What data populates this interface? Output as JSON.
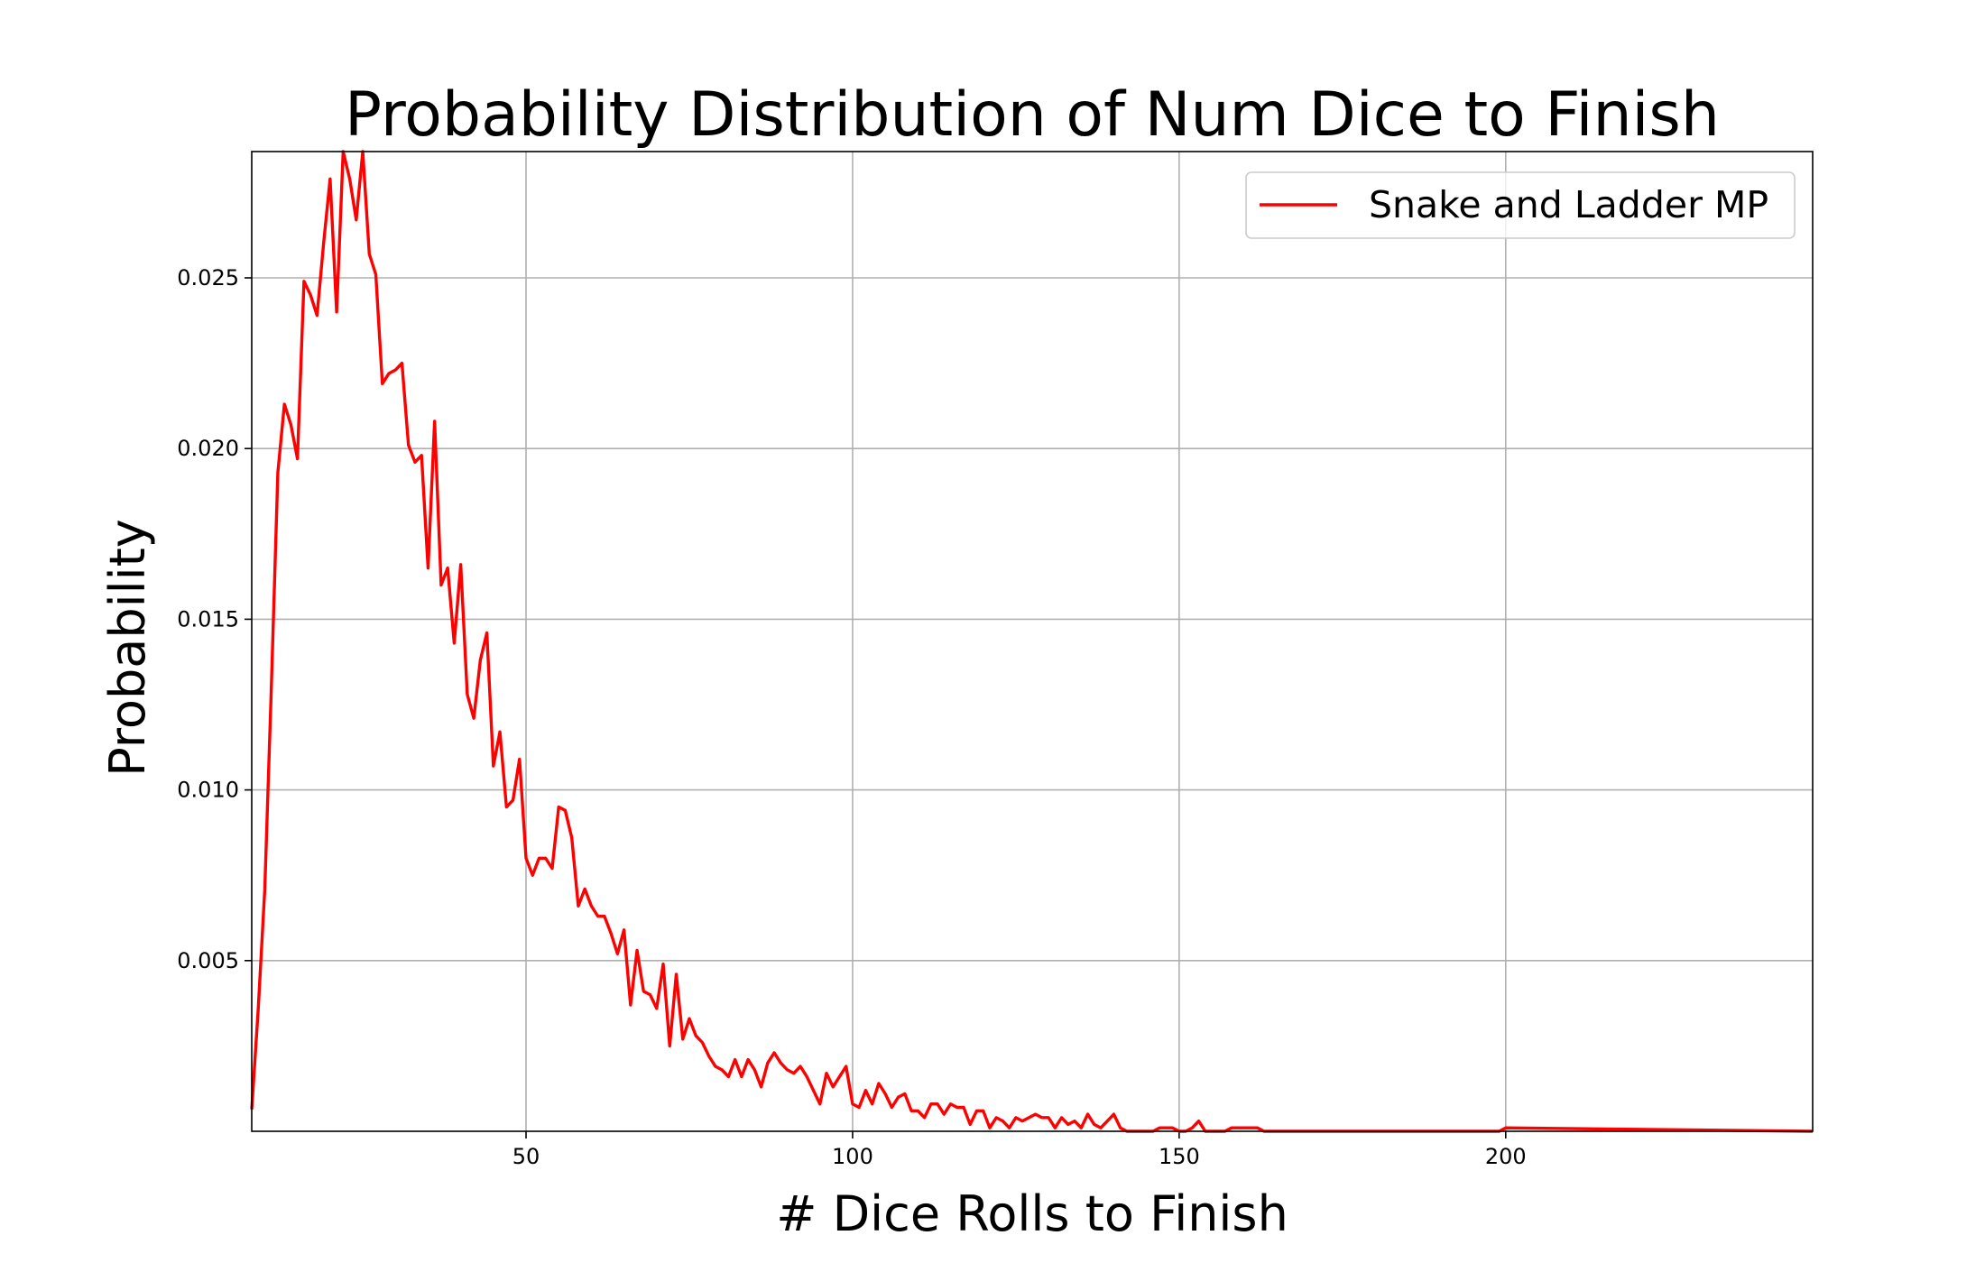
{
  "chart_data": {
    "type": "line",
    "title": "Probability Distribution of Num Dice to Finish",
    "x_label": "# Dice Rolls to Finish",
    "y_label": "Probability",
    "x": [
      8,
      9,
      10,
      11,
      12,
      13,
      14,
      15,
      16,
      17,
      18,
      19,
      20,
      21,
      22,
      23,
      24,
      25,
      26,
      27,
      28,
      29,
      30,
      31,
      32,
      33,
      34,
      35,
      36,
      37,
      38,
      39,
      40,
      41,
      42,
      43,
      44,
      45,
      46,
      47,
      48,
      49,
      50,
      51,
      52,
      53,
      54,
      55,
      56,
      57,
      58,
      59,
      60,
      61,
      62,
      63,
      64,
      65,
      66,
      67,
      68,
      69,
      70,
      71,
      72,
      73,
      74,
      75,
      76,
      77,
      78,
      79,
      80,
      81,
      82,
      83,
      84,
      85,
      86,
      87,
      88,
      89,
      90,
      91,
      92,
      93,
      94,
      95,
      96,
      97,
      98,
      99,
      100,
      101,
      102,
      103,
      104,
      105,
      106,
      107,
      108,
      109,
      110,
      111,
      112,
      113,
      114,
      115,
      116,
      117,
      118,
      119,
      120,
      121,
      122,
      123,
      124,
      125,
      126,
      127,
      128,
      129,
      130,
      131,
      132,
      133,
      134,
      135,
      136,
      137,
      138,
      139,
      140,
      141,
      142,
      143,
      144,
      145,
      146,
      147,
      148,
      149,
      150,
      151,
      152,
      153,
      154,
      155,
      156,
      157,
      158,
      159,
      160,
      161,
      162,
      163,
      199,
      200,
      247
    ],
    "series": [
      {
        "name": "Snake and Ladder MP",
        "color": "#ff0000",
        "values": [
          0.00064,
          0.0036,
          0.0071,
          0.013,
          0.0193,
          0.0213,
          0.0207,
          0.0197,
          0.0249,
          0.0245,
          0.0239,
          0.026,
          0.0279,
          0.024,
          0.0287,
          0.0279,
          0.0267,
          0.0287,
          0.0257,
          0.0251,
          0.0219,
          0.0222,
          0.0223,
          0.0225,
          0.0201,
          0.0196,
          0.0198,
          0.0165,
          0.0208,
          0.016,
          0.0165,
          0.0143,
          0.0166,
          0.0128,
          0.0121,
          0.0138,
          0.0146,
          0.0107,
          0.0117,
          0.0095,
          0.0097,
          0.0109,
          0.008,
          0.0075,
          0.008,
          0.008,
          0.0077,
          0.0095,
          0.0094,
          0.0086,
          0.0066,
          0.0071,
          0.0066,
          0.0063,
          0.0063,
          0.0058,
          0.0052,
          0.0059,
          0.0037,
          0.0053,
          0.0041,
          0.004,
          0.0036,
          0.0049,
          0.0025,
          0.0046,
          0.0027,
          0.0033,
          0.0028,
          0.0026,
          0.0022,
          0.0019,
          0.0018,
          0.0016,
          0.0021,
          0.0016,
          0.0021,
          0.0018,
          0.0013,
          0.002,
          0.0023,
          0.002,
          0.0018,
          0.0017,
          0.0019,
          0.0016,
          0.0012,
          0.0008,
          0.0017,
          0.0013,
          0.0016,
          0.0019,
          0.0008,
          0.0007,
          0.0012,
          0.0008,
          0.0014,
          0.0011,
          0.0007,
          0.001,
          0.0011,
          0.0006,
          0.0006,
          0.0004,
          0.0008,
          0.0008,
          0.0005,
          0.0008,
          0.0007,
          0.0007,
          0.0002,
          0.0006,
          0.0006,
          0.0001,
          0.0004,
          0.0003,
          0.0001,
          0.0004,
          0.0003,
          0.0004,
          0.0005,
          0.0004,
          0.0004,
          0.0001,
          0.0004,
          0.0002,
          0.0003,
          0.0001,
          0.0005,
          0.0002,
          0.0001,
          0.0003,
          0.0005,
          0.0001,
          0,
          0,
          0,
          0,
          0,
          0.0001,
          0.0001,
          0.0001,
          0,
          0,
          0.0001,
          0.0003,
          0,
          0,
          0,
          0,
          0.0001,
          0.0001,
          0.0001,
          0.0001,
          0.0001,
          0,
          0,
          0.0001,
          0
        ]
      }
    ],
    "xlim": [
      8,
      247
    ],
    "ylim": [
      0,
      0.0287
    ],
    "xticks": [
      50,
      100,
      150,
      200
    ],
    "yticks": [
      0.005,
      {
        "value": 0.01,
        "label": "0.010"
      },
      0.015,
      {
        "value": 0.02,
        "label": "0.020"
      },
      0.025
    ],
    "grid": true,
    "legend": "upper right"
  }
}
